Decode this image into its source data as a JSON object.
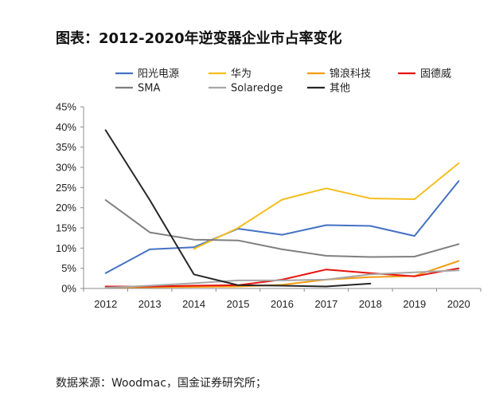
{
  "title": "图表：2012-2020年逆变器企业市占率变化",
  "source": "数据来源：Woodmac，国金证券研究所；",
  "chart_data": {
    "type": "line",
    "x": [
      "2012",
      "2013",
      "2014",
      "2015",
      "2016",
      "2017",
      "2018",
      "2019",
      "2020"
    ],
    "ylim": [
      0,
      45
    ],
    "yticks": [
      "0%",
      "5%",
      "10%",
      "15%",
      "20%",
      "25%",
      "30%",
      "35%",
      "40%",
      "45%"
    ],
    "grid": false,
    "legend_position": "top",
    "series": [
      {
        "name": "阳光电源",
        "color": "#4472C4",
        "values": [
          3.8,
          9.7,
          10.2,
          14.8,
          13.3,
          15.7,
          15.5,
          13.0,
          26.6
        ]
      },
      {
        "name": "华为",
        "color": "#F5BE1E",
        "values": [
          null,
          null,
          9.8,
          15.0,
          22.0,
          24.8,
          22.3,
          22.1,
          31.0
        ]
      },
      {
        "name": "锦浪科技",
        "color": "#F39C12",
        "values": [
          0.3,
          0.3,
          0.4,
          0.5,
          0.9,
          2.2,
          2.8,
          3.1,
          6.8
        ]
      },
      {
        "name": "固德威",
        "color": "#E8130E",
        "values": [
          0.5,
          0.5,
          0.7,
          0.8,
          2.2,
          4.7,
          3.8,
          3.0,
          5.0
        ]
      },
      {
        "name": "SMA",
        "color": "#7F7F7F",
        "values": [
          21.9,
          13.9,
          12.1,
          11.9,
          9.7,
          8.1,
          7.8,
          7.9,
          11.0
        ]
      },
      {
        "name": "Solaredge",
        "color": "#A6A6A6",
        "values": [
          0.2,
          0.7,
          1.3,
          2.0,
          2.0,
          2.2,
          3.5,
          4.0,
          4.5
        ]
      },
      {
        "name": "其他",
        "color": "#262626",
        "values": [
          39.2,
          21.9,
          3.5,
          0.8,
          0.7,
          0.5,
          1.2,
          null,
          null
        ]
      }
    ]
  }
}
